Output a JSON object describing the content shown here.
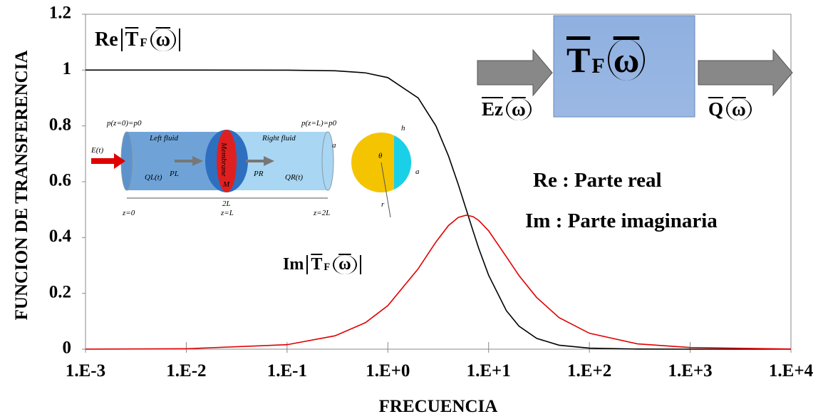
{
  "chart_data": {
    "type": "line",
    "xlabel": "FRECUENCIA",
    "ylabel": "FUNCION DE TRANSFERENCIA",
    "log_x": true,
    "x": [
      0.001,
      0.01,
      0.1,
      0.3,
      0.6,
      1,
      2,
      3,
      4,
      5,
      6,
      7,
      8,
      10,
      15,
      20,
      30,
      50,
      100,
      300,
      1000,
      10000
    ],
    "series": [
      {
        "name": "Re",
        "color": "#000000",
        "values": [
          1,
          1,
          0.9997,
          0.9975,
          0.99,
          0.973,
          0.9,
          0.8,
          0.692,
          0.59,
          0.5,
          0.424,
          0.36,
          0.265,
          0.138,
          0.0826,
          0.0385,
          0.0142,
          0.0036,
          0.0004,
          0,
          0
        ]
      },
      {
        "name": "Im",
        "color": "#e00000",
        "values": [
          0.0002,
          0.0016,
          0.016,
          0.048,
          0.095,
          0.156,
          0.288,
          0.384,
          0.443,
          0.472,
          0.48,
          0.475,
          0.461,
          0.424,
          0.331,
          0.264,
          0.185,
          0.113,
          0.057,
          0.019,
          0.0058,
          0.0006
        ]
      }
    ],
    "xlim": [
      0.001,
      10000
    ],
    "xticks": [
      {
        "value": 0.001,
        "label": "1.E-3"
      },
      {
        "value": 0.01,
        "label": "1.E-2"
      },
      {
        "value": 0.1,
        "label": "1.E-1"
      },
      {
        "value": 1,
        "label": "1.E+0"
      },
      {
        "value": 10,
        "label": "1.E+1"
      },
      {
        "value": 100,
        "label": "1.E+2"
      },
      {
        "value": 1000,
        "label": "1.E+3"
      },
      {
        "value": 10000,
        "label": "1.E+4"
      }
    ],
    "ylim": [
      0,
      1.2
    ],
    "yticks": [
      0,
      0.2,
      0.4,
      0.6,
      0.8,
      1,
      1.2
    ],
    "annotations": {
      "re_curve": {
        "part": "Re",
        "symbol": "T",
        "sub": "F",
        "arg": "ω"
      },
      "im_curve": {
        "part": "Im",
        "symbol": "T",
        "sub": "F",
        "arg": "ω"
      },
      "block": {
        "symbol": "T",
        "sub": "F",
        "arg": "ω"
      },
      "input": {
        "symbol": "Ez",
        "arg": "ω"
      },
      "output": {
        "symbol": "Q",
        "arg": "ω"
      },
      "legend": [
        "Re : Parte real",
        "Im : Parte imaginaria"
      ]
    },
    "inset_labels": [
      "p(z=0)=p0",
      "p(z=L)=p0",
      "Left fluid",
      "Right fluid",
      "Membrane",
      "M",
      "E(t)",
      "QL(t)",
      "QR(t)",
      "PL",
      "PR",
      "2L",
      "z=0",
      "z=L",
      "z=2L",
      "a",
      "θ",
      "h",
      "a",
      "r"
    ]
  }
}
